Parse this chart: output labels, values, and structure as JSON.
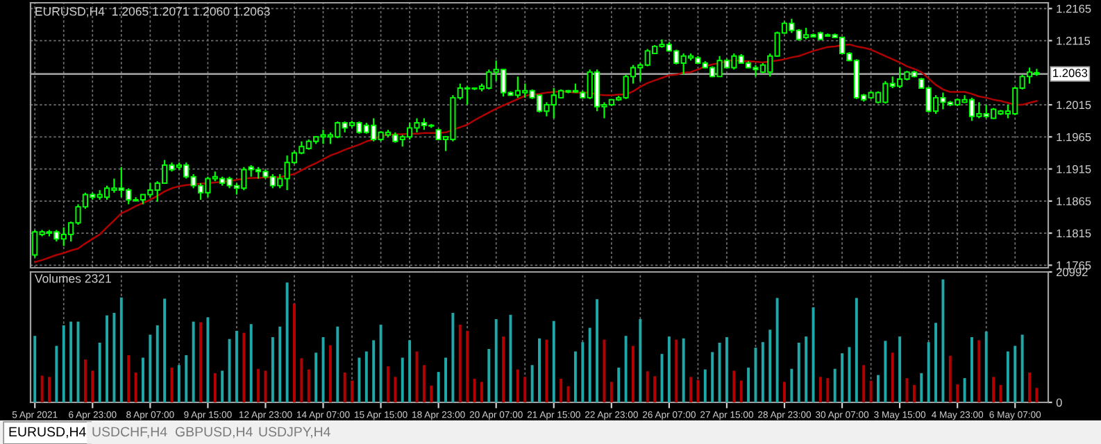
{
  "chart_data": [
    {
      "type": "candlestick",
      "title": "EURUSD,H4  1.2065 1.2071 1.2060 1.2063",
      "ohlc": [
        [
          1.1781,
          1.182,
          1.1777,
          1.1817
        ],
        [
          1.1813,
          1.182,
          1.181,
          1.1817
        ],
        [
          1.1815,
          1.182,
          1.181,
          1.1817
        ],
        [
          1.1817,
          1.182,
          1.1802,
          1.1806
        ],
        [
          1.1806,
          1.1824,
          1.1795,
          1.1813
        ],
        [
          1.1813,
          1.1833,
          1.1802,
          1.1831
        ],
        [
          1.1831,
          1.186,
          1.1828,
          1.1856
        ],
        [
          1.1856,
          1.1878,
          1.1853,
          1.1875
        ],
        [
          1.1875,
          1.1878,
          1.1867,
          1.1871
        ],
        [
          1.1871,
          1.1882,
          1.1867,
          1.1875
        ],
        [
          1.1871,
          1.1889,
          1.1867,
          1.1885
        ],
        [
          1.1882,
          1.19,
          1.1878,
          1.1885
        ],
        [
          1.1885,
          1.1918,
          1.1871,
          1.1882
        ],
        [
          1.1882,
          1.1885,
          1.186,
          1.1867
        ],
        [
          1.1867,
          1.1871,
          1.1864,
          1.1866
        ],
        [
          1.1867,
          1.1875,
          1.186,
          1.1875
        ],
        [
          1.1875,
          1.1893,
          1.1871,
          1.1882
        ],
        [
          1.1882,
          1.1896,
          1.1864,
          1.1893
        ],
        [
          1.1893,
          1.1929,
          1.1893,
          1.1921
        ],
        [
          1.1921,
          1.1925,
          1.1911,
          1.1914
        ],
        [
          1.1918,
          1.1925,
          1.1914,
          1.1921
        ],
        [
          1.1921,
          1.1925,
          1.19,
          1.1903
        ],
        [
          1.1903,
          1.1907,
          1.1885,
          1.1889
        ],
        [
          1.1889,
          1.1893,
          1.1867,
          1.1878
        ],
        [
          1.1878,
          1.1903,
          1.1871,
          1.19
        ],
        [
          1.19,
          1.1911,
          1.1896,
          1.1903
        ],
        [
          1.19,
          1.1903,
          1.1889,
          1.1893
        ],
        [
          1.19,
          1.1903,
          1.1885,
          1.1889
        ],
        [
          1.1889,
          1.1893,
          1.1875,
          1.1885
        ],
        [
          1.1885,
          1.1918,
          1.1882,
          1.1914
        ],
        [
          1.1918,
          1.1921,
          1.1903,
          1.1914
        ],
        [
          1.1914,
          1.1918,
          1.19,
          1.1911
        ],
        [
          1.1911,
          1.1914,
          1.19,
          1.1903
        ],
        [
          1.1903,
          1.1907,
          1.1885,
          1.1889
        ],
        [
          1.1889,
          1.1907,
          1.1885,
          1.19
        ],
        [
          1.19,
          1.1936,
          1.1882,
          1.1925
        ],
        [
          1.1925,
          1.1943,
          1.1923,
          1.194
        ],
        [
          1.194,
          1.1958,
          1.1938,
          1.195
        ],
        [
          1.1947,
          1.1961,
          1.1945,
          1.1958
        ],
        [
          1.1958,
          1.1966,
          1.1954,
          1.1965
        ],
        [
          1.1965,
          1.1976,
          1.1954,
          1.1968
        ],
        [
          1.1965,
          1.1972,
          1.1954,
          1.1968
        ],
        [
          1.1965,
          1.1989,
          1.1963,
          1.1987
        ],
        [
          1.1987,
          1.1989,
          1.1972,
          1.1979
        ],
        [
          1.1983,
          1.199,
          1.1979,
          1.1987
        ],
        [
          1.1987,
          1.1989,
          1.197,
          1.1972
        ],
        [
          1.1983,
          1.1987,
          1.197,
          1.1972
        ],
        [
          1.1983,
          1.1994,
          1.1958,
          1.1961
        ],
        [
          1.1961,
          1.1974,
          1.1958,
          1.1972
        ],
        [
          1.1968,
          1.1976,
          1.1965,
          1.1972
        ],
        [
          1.1968,
          1.1972,
          1.1956,
          1.1958
        ],
        [
          1.1961,
          1.1968,
          1.195,
          1.1965
        ],
        [
          1.1965,
          1.1987,
          1.1961,
          1.1979
        ],
        [
          1.1979,
          1.1994,
          1.1972,
          1.1987
        ],
        [
          1.1987,
          1.1994,
          1.1976,
          1.1983
        ],
        [
          1.1983,
          1.1985,
          1.1979,
          1.1982
        ],
        [
          1.1976,
          1.1978,
          1.196,
          1.1961
        ],
        [
          1.1961,
          1.1966,
          1.1943,
          1.1965
        ],
        [
          1.1961,
          1.203,
          1.1958,
          1.2026
        ],
        [
          1.2026,
          1.2048,
          1.2023,
          1.2041
        ],
        [
          1.2041,
          1.2044,
          1.2015,
          1.204
        ],
        [
          1.204,
          1.2042,
          1.2038,
          1.2041
        ],
        [
          1.204,
          1.2048,
          1.2036,
          1.2044
        ],
        [
          1.2041,
          1.207,
          1.2039,
          1.2066
        ],
        [
          1.2066,
          1.2084,
          1.2052,
          1.207
        ],
        [
          1.207,
          1.2071,
          1.2028,
          1.2034
        ],
        [
          1.2034,
          1.2036,
          1.2029,
          1.203
        ],
        [
          1.203,
          1.2059,
          1.2026,
          1.2037
        ],
        [
          1.2034,
          1.2048,
          1.2026,
          1.2037
        ],
        [
          1.2037,
          1.2039,
          1.2024,
          1.2026
        ],
        [
          1.203,
          1.2031,
          1.2003,
          1.2005
        ],
        [
          1.2005,
          1.2019,
          1.1997,
          1.2015
        ],
        [
          1.2015,
          1.2041,
          1.1994,
          1.203
        ],
        [
          1.2026,
          1.2039,
          1.2025,
          1.2037
        ],
        [
          1.2035,
          1.2038,
          1.2033,
          1.2037
        ],
        [
          1.2035,
          1.2048,
          1.2034,
          1.2037
        ],
        [
          1.2034,
          1.2037,
          1.2025,
          1.2026
        ],
        [
          1.2026,
          1.207,
          1.2024,
          1.2066
        ],
        [
          1.2066,
          1.207,
          1.2005,
          1.2012
        ],
        [
          1.2012,
          1.2019,
          1.1994,
          1.2015
        ],
        [
          1.2015,
          1.2024,
          1.2013,
          1.2023
        ],
        [
          1.2023,
          1.2029,
          1.2021,
          1.2026
        ],
        [
          1.2026,
          1.2062,
          1.2024,
          1.2059
        ],
        [
          1.2059,
          1.2077,
          1.2048,
          1.2073
        ],
        [
          1.2073,
          1.208,
          1.2052,
          1.2077
        ],
        [
          1.2077,
          1.2102,
          1.2075,
          1.2099
        ],
        [
          1.2095,
          1.2108,
          1.2094,
          1.2106
        ],
        [
          1.2106,
          1.2117,
          1.2104,
          1.2109
        ],
        [
          1.2109,
          1.2113,
          1.2098,
          1.2099
        ],
        [
          1.2099,
          1.2101,
          1.2078,
          1.208
        ],
        [
          1.208,
          1.2095,
          1.2062,
          1.2091
        ],
        [
          1.2088,
          1.2095,
          1.2084,
          1.2091
        ],
        [
          1.2088,
          1.2091,
          1.2079,
          1.208
        ],
        [
          1.208,
          1.2083,
          1.2072,
          1.2073
        ],
        [
          1.2073,
          1.2075,
          1.2058,
          1.2059
        ],
        [
          1.2059,
          1.2091,
          1.2059,
          1.2084
        ],
        [
          1.2084,
          1.2087,
          1.2072,
          1.2073
        ],
        [
          1.2073,
          1.2095,
          1.207,
          1.2091
        ],
        [
          1.2091,
          1.2094,
          1.2079,
          1.208
        ],
        [
          1.208,
          1.2083,
          1.2072,
          1.2073
        ],
        [
          1.2073,
          1.2077,
          1.2059,
          1.207
        ],
        [
          1.2066,
          1.208,
          1.2064,
          1.2077
        ],
        [
          1.2066,
          1.2095,
          1.2059,
          1.2091
        ],
        [
          1.2091,
          1.2129,
          1.209,
          1.2127
        ],
        [
          1.2127,
          1.2145,
          1.2126,
          1.2142
        ],
        [
          1.2142,
          1.2149,
          1.2127,
          1.2131
        ],
        [
          1.2131,
          1.2133,
          1.2115,
          1.2117
        ],
        [
          1.212,
          1.2135,
          1.2117,
          1.2124
        ],
        [
          1.2124,
          1.2126,
          1.212,
          1.2121
        ],
        [
          1.2127,
          1.2129,
          1.2116,
          1.2117
        ],
        [
          1.2122,
          1.2126,
          1.2121,
          1.2124
        ],
        [
          1.2124,
          1.2126,
          1.2119,
          1.212
        ],
        [
          1.212,
          1.2121,
          1.2094,
          1.2095
        ],
        [
          1.2095,
          1.2097,
          1.2083,
          1.2084
        ],
        [
          1.2084,
          1.2086,
          1.2024,
          1.2026
        ],
        [
          1.203,
          1.2032,
          1.202,
          1.2023
        ],
        [
          1.2026,
          1.2036,
          1.2024,
          1.2034
        ],
        [
          1.2019,
          1.2036,
          1.2017,
          1.2034
        ],
        [
          1.2019,
          1.2052,
          1.2017,
          1.2048
        ],
        [
          1.2048,
          1.2059,
          1.2041,
          1.2044
        ],
        [
          1.2044,
          1.2073,
          1.2041,
          1.2055
        ],
        [
          1.2055,
          1.2068,
          1.2053,
          1.2066
        ],
        [
          1.2066,
          1.2068,
          1.2058,
          1.2059
        ],
        [
          1.2055,
          1.2057,
          1.204,
          1.2041
        ],
        [
          1.2041,
          1.2043,
          1.2003,
          1.2005
        ],
        [
          1.2005,
          1.203,
          1.2001,
          1.2026
        ],
        [
          1.2026,
          1.2034,
          1.2008,
          1.2019
        ],
        [
          1.2019,
          1.2021,
          1.2013,
          1.2015
        ],
        [
          1.2015,
          1.2025,
          1.2013,
          1.2023
        ],
        [
          1.2019,
          1.203,
          1.2018,
          1.2023
        ],
        [
          1.2023,
          1.2026,
          1.199,
          1.1997
        ],
        [
          1.1997,
          1.2019,
          1.1994,
          1.2001
        ],
        [
          1.2001,
          1.2015,
          1.1994,
          1.1997
        ],
        [
          1.1994,
          1.201,
          1.1993,
          1.2008
        ],
        [
          1.2001,
          1.2007,
          1.1999,
          1.2005
        ],
        [
          1.2001,
          1.2015,
          1.1994,
          1.2005
        ],
        [
          1.2001,
          1.2043,
          1.1999,
          1.2041
        ],
        [
          1.2041,
          1.2062,
          1.2039,
          1.2059
        ],
        [
          1.2059,
          1.2073,
          1.2048,
          1.2066
        ],
        [
          1.2065,
          1.2071,
          1.206,
          1.2063
        ]
      ],
      "series": [
        {
          "type": "line",
          "color": "#b00000",
          "values": [
            1.177,
            1.1773,
            1.1777,
            1.1781,
            1.1784,
            1.1788,
            1.1791,
            1.1799,
            1.1806,
            1.1813,
            1.1824,
            1.1835,
            1.1846,
            1.1851,
            1.1857,
            1.1862,
            1.1867,
            1.1873,
            1.188,
            1.1885,
            1.1888,
            1.189,
            1.1891,
            1.1892,
            1.1893,
            1.1894,
            1.1895,
            1.1896,
            1.1898,
            1.19,
            1.1901,
            1.1901,
            1.1902,
            1.1902,
            1.1902,
            1.1905,
            1.1907,
            1.1913,
            1.1919,
            1.1924,
            1.193,
            1.1936,
            1.194,
            1.1945,
            1.1949,
            1.1953,
            1.1958,
            1.1961,
            1.1967,
            1.1968,
            1.1969,
            1.1969,
            1.197,
            1.197,
            1.1971,
            1.1971,
            1.1971,
            1.1972,
            1.1976,
            1.198,
            1.1984,
            1.1991,
            1.1997,
            1.2003,
            1.2009,
            1.2014,
            1.2019,
            1.2024,
            1.2029,
            1.2031,
            1.2032,
            1.2034,
            1.2035,
            1.2036,
            1.2035,
            1.2034,
            1.2034,
            1.2034,
            1.2031,
            1.203,
            1.203,
            1.2031,
            1.2031,
            1.2036,
            1.2043,
            1.2049,
            1.2053,
            1.2057,
            1.2061,
            1.2062,
            1.2065,
            1.2066,
            1.207,
            1.2075,
            1.2078,
            1.208,
            1.2083,
            1.2085,
            1.2083,
            1.2083,
            1.2082,
            1.2081,
            1.2083,
            1.2084,
            1.2086,
            1.2089,
            1.2091,
            1.2095,
            1.2099,
            1.2102,
            1.2105,
            1.2106,
            1.2108,
            1.2109,
            1.2106,
            1.2104,
            1.2101,
            1.2096,
            1.2091,
            1.2086,
            1.2081,
            1.2075,
            1.2071,
            1.2066,
            1.2056,
            1.2046,
            1.2039,
            1.2035,
            1.2035,
            1.2035,
            1.2032,
            1.2028,
            1.2026,
            1.2023,
            1.2021,
            1.2018,
            1.2015,
            1.2015,
            1.2018,
            1.2021
          ]
        }
      ],
      "ylim": [
        1.1761,
        1.2174
      ],
      "yticks": [
        1.1765,
        1.1815,
        1.1865,
        1.1915,
        1.1965,
        1.2015,
        1.2115,
        1.2165
      ],
      "ref_lines": [
        {
          "axis": "y",
          "value": 1.2063,
          "label": "1.2063"
        }
      ],
      "grid": true,
      "tick_labels": "y"
    },
    {
      "type": "bar",
      "title": "Volumes 2321",
      "categories": [
        "5 Apr 2021",
        null,
        null,
        null,
        null,
        null,
        null,
        null,
        "6 Apr 23:00",
        null,
        null,
        null,
        null,
        null,
        null,
        null,
        "8 Apr 07:00",
        null,
        null,
        null,
        null,
        null,
        null,
        null,
        "9 Apr 15:00",
        null,
        null,
        null,
        null,
        null,
        null,
        null,
        "12 Apr 23:00",
        null,
        null,
        null,
        null,
        null,
        null,
        null,
        "14 Apr 07:00",
        null,
        null,
        null,
        null,
        null,
        null,
        null,
        "15 Apr 15:00",
        null,
        null,
        null,
        null,
        null,
        null,
        null,
        "18 Apr 23:00",
        null,
        null,
        null,
        null,
        null,
        null,
        null,
        "20 Apr 07:00",
        null,
        null,
        null,
        null,
        null,
        null,
        null,
        "21 Apr 15:00",
        null,
        null,
        null,
        null,
        null,
        null,
        null,
        "22 Apr 23:00",
        null,
        null,
        null,
        null,
        null,
        null,
        null,
        "26 Apr 07:00",
        null,
        null,
        null,
        null,
        null,
        null,
        null,
        "27 Apr 15:00",
        null,
        null,
        null,
        null,
        null,
        null,
        null,
        "28 Apr 23:00",
        null,
        null,
        null,
        null,
        null,
        null,
        null,
        "30 Apr 07:00",
        null,
        null,
        null,
        null,
        null,
        null,
        null,
        "3 May 15:00",
        null,
        null,
        null,
        null,
        null,
        null,
        null,
        "4 May 23:00",
        null,
        null,
        null,
        null,
        null,
        null,
        null,
        "6 May 07:00",
        null,
        null,
        null
      ],
      "values": [
        10700,
        4300,
        4100,
        9100,
        12400,
        13000,
        13000,
        6900,
        5100,
        9600,
        14000,
        14400,
        16900,
        7600,
        4800,
        7200,
        10900,
        12400,
        16700,
        5600,
        6000,
        7600,
        13000,
        12900,
        13700,
        4700,
        5100,
        10200,
        11500,
        11200,
        12600,
        5400,
        5100,
        10500,
        12200,
        19300,
        15900,
        7100,
        5300,
        8000,
        10500,
        9200,
        12200,
        4800,
        3500,
        7200,
        8200,
        10000,
        12500,
        5800,
        4100,
        7200,
        10000,
        8200,
        6000,
        2700,
        4900,
        7200,
        14400,
        12500,
        11500,
        3800,
        3300,
        8600,
        13400,
        10600,
        14100,
        5300,
        4100,
        6000,
        10300,
        10100,
        13100,
        3800,
        2600,
        8200,
        9700,
        12000,
        16600,
        10100,
        3300,
        5600,
        10700,
        9100,
        13400,
        5000,
        4200,
        7800,
        10600,
        10100,
        10300,
        4100,
        3600,
        5300,
        8100,
        9600,
        10500,
        5100,
        3500,
        5600,
        8800,
        9700,
        11700,
        16800,
        3300,
        5400,
        9600,
        10600,
        15300,
        4100,
        3900,
        5400,
        7900,
        8900,
        16800,
        6000,
        3500,
        4400,
        9900,
        8000,
        10600,
        3900,
        2800,
        4700,
        9700,
        12800,
        19800,
        7500,
        2900,
        3900,
        10500,
        10000,
        11400,
        4100,
        2800,
        8200,
        9100,
        10900,
        4800,
        2321
      ],
      "colors": [
        "#20a8a8",
        "#b40000",
        "#b40000",
        "#20a8a8",
        "#20a8a8",
        "#20a8a8",
        "#20a8a8",
        "#b40000",
        "#b40000",
        "#20a8a8",
        "#20a8a8",
        "#20a8a8",
        "#20a8a8",
        "#b40000",
        "#b40000",
        "#20a8a8",
        "#20a8a8",
        "#20a8a8",
        "#20a8a8",
        "#b40000",
        "#20a8a8",
        "#20a8a8",
        "#20a8a8",
        "#b40000",
        "#20a8a8",
        "#b40000",
        "#20a8a8",
        "#20a8a8",
        "#20a8a8",
        "#b40000",
        "#20a8a8",
        "#b40000",
        "#b40000",
        "#20a8a8",
        "#20a8a8",
        "#20a8a8",
        "#b40000",
        "#b40000",
        "#b40000",
        "#20a8a8",
        "#20a8a8",
        "#b40000",
        "#20a8a8",
        "#b40000",
        "#b40000",
        "#20a8a8",
        "#20a8a8",
        "#20a8a8",
        "#20a8a8",
        "#b40000",
        "#b40000",
        "#20a8a8",
        "#20a8a8",
        "#b40000",
        "#b40000",
        "#b40000",
        "#20a8a8",
        "#20a8a8",
        "#20a8a8",
        "#b40000",
        "#b40000",
        "#b40000",
        "#b40000",
        "#20a8a8",
        "#20a8a8",
        "#b40000",
        "#20a8a8",
        "#b40000",
        "#b40000",
        "#20a8a8",
        "#20a8a8",
        "#b40000",
        "#20a8a8",
        "#b40000",
        "#b40000",
        "#20a8a8",
        "#20a8a8",
        "#20a8a8",
        "#20a8a8",
        "#b40000",
        "#b40000",
        "#20a8a8",
        "#20a8a8",
        "#b40000",
        "#20a8a8",
        "#b40000",
        "#b40000",
        "#20a8a8",
        "#20a8a8",
        "#b40000",
        "#20a8a8",
        "#b40000",
        "#b40000",
        "#20a8a8",
        "#20a8a8",
        "#20a8a8",
        "#20a8a8",
        "#b40000",
        "#b40000",
        "#20a8a8",
        "#20a8a8",
        "#20a8a8",
        "#20a8a8",
        "#20a8a8",
        "#b40000",
        "#20a8a8",
        "#20a8a8",
        "#20a8a8",
        "#20a8a8",
        "#b40000",
        "#b40000",
        "#20a8a8",
        "#20a8a8",
        "#20a8a8",
        "#20a8a8",
        "#b40000",
        "#b40000",
        "#20a8a8",
        "#20a8a8",
        "#b40000",
        "#20a8a8",
        "#b40000",
        "#b40000",
        "#20a8a8",
        "#20a8a8",
        "#20a8a8",
        "#20a8a8",
        "#b40000",
        "#b40000",
        "#20a8a8",
        "#20a8a8",
        "#b40000",
        "#20a8a8",
        "#b40000",
        "#b40000",
        "#20a8a8",
        "#20a8a8",
        "#20a8a8",
        "#b40000",
        "#b40000"
      ],
      "ylim": [
        0,
        20992
      ],
      "yticks": [
        0,
        20992
      ],
      "grid": "x",
      "annotations": [
        "EURUSD,H4",
        "USDCHF,H4",
        "GBPUSD,H4",
        "USDJPY,H4"
      ]
    }
  ]
}
